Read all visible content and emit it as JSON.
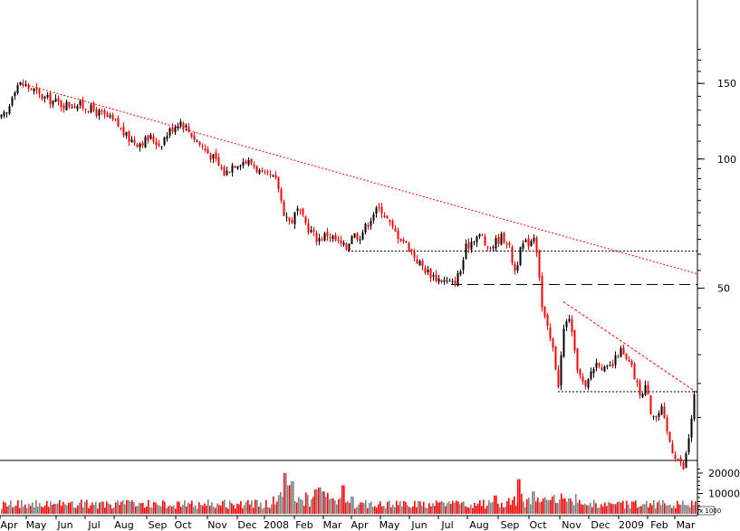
{
  "chart_data": {
    "type": "candlestick",
    "scale": "log",
    "price_ticks": [
      "150",
      "100",
      "50"
    ],
    "volume_ticks": [
      "20000",
      "10000"
    ],
    "volume_unit_label": "x 1000",
    "x_labels": [
      "Apr",
      "May",
      "Jun",
      "Jul",
      "Aug",
      "Sep",
      "Oct",
      "Nov",
      "Dec",
      "2008",
      "Feb",
      "Mar",
      "Apr",
      "May",
      "Jun",
      "Jul",
      "Aug",
      "Sep",
      "Oct",
      "Nov",
      "Dec",
      "2009",
      "Feb",
      "Mar"
    ],
    "colors": {
      "up": "#000000",
      "down": "#ff0000",
      "trend": "#ff0000",
      "support": "#000000",
      "volume_up": "#808080",
      "volume_down": "#ff0000"
    },
    "price_anchors": [
      {
        "x": "Apr 2007",
        "close": 124
      },
      {
        "x": "Apr 2007 (late)",
        "close": 150
      },
      {
        "x": "May 2007",
        "close": 148
      },
      {
        "x": "Jun 2007",
        "close": 137
      },
      {
        "x": "Jul 2007",
        "close": 132
      },
      {
        "x": "Aug 2007",
        "close": 112
      },
      {
        "x": "Sep 2007",
        "close": 110
      },
      {
        "x": "Oct 2007",
        "close": 122
      },
      {
        "x": "Nov 2007",
        "close": 96
      },
      {
        "x": "Dec 2007",
        "close": 100
      },
      {
        "x": "Jan 2008",
        "close": 88
      },
      {
        "x": "Feb 2008",
        "close": 64
      },
      {
        "x": "Mar 2008",
        "close": 62
      },
      {
        "x": "Apr 2008",
        "close": 66
      },
      {
        "x": "May 2008",
        "close": 70
      },
      {
        "x": "Jun 2008",
        "close": 58
      },
      {
        "x": "Jul 2008",
        "close": 51
      },
      {
        "x": "Aug 2008",
        "close": 64
      },
      {
        "x": "Sep 2008",
        "close": 66
      },
      {
        "x": "Oct 2008",
        "close": 45
      },
      {
        "x": "Nov 2008",
        "close": 30
      },
      {
        "x": "Dec 2008",
        "close": 33
      },
      {
        "x": "Jan 2009",
        "close": 31
      },
      {
        "x": "Feb 2009",
        "close": 23
      },
      {
        "x": "Mar 2009",
        "close": 29
      }
    ],
    "trend_lines": [
      {
        "name": "long-term-downtrend",
        "from": {
          "x": "Apr 2007",
          "y": 150
        },
        "to": {
          "x": "Mar 2009",
          "y": 54
        }
      },
      {
        "name": "short-term-downtrend",
        "from": {
          "x": "Nov 2008",
          "y": 46
        },
        "to": {
          "x": "Mar 2009",
          "y": 29
        }
      }
    ],
    "support_levels": [
      {
        "name": "dotted-upper",
        "y": 61,
        "from": "Mar 2008",
        "to": "Mar 2009",
        "style": "dotted"
      },
      {
        "name": "dashed-mid",
        "y": 51,
        "from": "Jul 2008",
        "to": "Mar 2009",
        "style": "dashed"
      },
      {
        "name": "dotted-lower",
        "y": 29,
        "from": "Oct 2008",
        "to": "Mar 2009",
        "style": "dotted"
      }
    ],
    "volume_typical": 6000,
    "volume_spikes": [
      {
        "x": "Jan 2008",
        "value": 20000
      },
      {
        "x": "Feb 2008",
        "value": 16000
      },
      {
        "x": "Mar 2008",
        "value": 15000
      },
      {
        "x": "Sep 2008",
        "value": 17000
      }
    ]
  }
}
